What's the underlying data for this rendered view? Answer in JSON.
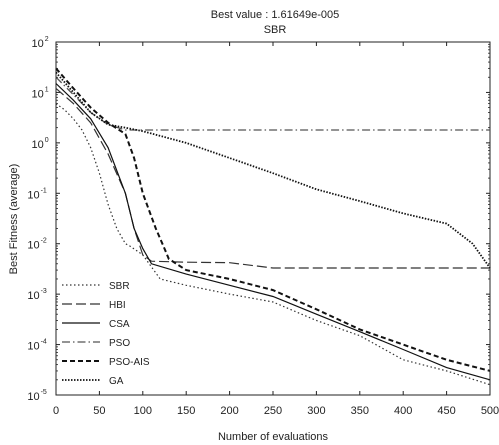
{
  "chart_data": {
    "type": "line",
    "title": "Best value : 1.61649e-005",
    "subtitle": "SBR",
    "xlabel": "Number of evaluations",
    "ylabel": "Best Fitness (average)",
    "xlim": [
      0,
      500
    ],
    "ylim": [
      1e-05,
      100
    ],
    "yscale": "log",
    "grid": false,
    "legend_position": "bottom-left",
    "x_ticks": [
      "0",
      "50",
      "100",
      "150",
      "200",
      "250",
      "300",
      "350",
      "400",
      "450",
      "500"
    ],
    "y_ticks": [
      {
        "base": "10",
        "exp": "2"
      },
      {
        "base": "10",
        "exp": "1"
      },
      {
        "base": "10",
        "exp": "0"
      },
      {
        "base": "10",
        "exp": "-1"
      },
      {
        "base": "10",
        "exp": "-2"
      },
      {
        "base": "10",
        "exp": "-3"
      },
      {
        "base": "10",
        "exp": "-4"
      },
      {
        "base": "10",
        "exp": "-5"
      }
    ],
    "series": [
      {
        "name": "SBR",
        "style": "dotted",
        "color": "#333333",
        "points": [
          [
            0,
            6
          ],
          [
            10,
            4.5
          ],
          [
            20,
            3
          ],
          [
            30,
            1.8
          ],
          [
            40,
            0.8
          ],
          [
            50,
            0.25
          ],
          [
            60,
            0.06
          ],
          [
            70,
            0.02
          ],
          [
            80,
            0.01
          ],
          [
            85,
            0.009
          ],
          [
            100,
            0.006
          ],
          [
            120,
            0.002
          ],
          [
            150,
            0.0015
          ],
          [
            200,
            0.001
          ],
          [
            250,
            0.0007
          ],
          [
            300,
            0.0003
          ],
          [
            350,
            0.00015
          ],
          [
            400,
            5e-05
          ],
          [
            450,
            3e-05
          ],
          [
            500,
            1.6e-05
          ]
        ]
      },
      {
        "name": "HBI",
        "style": "longdash",
        "color": "#333333",
        "points": [
          [
            0,
            12
          ],
          [
            20,
            6
          ],
          [
            40,
            2.5
          ],
          [
            60,
            0.6
          ],
          [
            80,
            0.1
          ],
          [
            90,
            0.02
          ],
          [
            100,
            0.006
          ],
          [
            110,
            0.0045
          ],
          [
            150,
            0.0043
          ],
          [
            200,
            0.0042
          ],
          [
            250,
            0.0033
          ],
          [
            500,
            0.0033
          ]
        ]
      },
      {
        "name": "CSA",
        "style": "solid",
        "color": "#111111",
        "points": [
          [
            0,
            15
          ],
          [
            20,
            7
          ],
          [
            40,
            3
          ],
          [
            60,
            0.8
          ],
          [
            80,
            0.1
          ],
          [
            90,
            0.02
          ],
          [
            100,
            0.008
          ],
          [
            110,
            0.004
          ],
          [
            150,
            0.0025
          ],
          [
            200,
            0.0015
          ],
          [
            250,
            0.0009
          ],
          [
            300,
            0.0004
          ],
          [
            350,
            0.00018
          ],
          [
            400,
            8e-05
          ],
          [
            450,
            3.5e-05
          ],
          [
            500,
            2e-05
          ]
        ]
      },
      {
        "name": "PSO",
        "style": "dashdot",
        "color": "#555555",
        "points": [
          [
            0,
            20
          ],
          [
            20,
            9
          ],
          [
            40,
            4
          ],
          [
            60,
            2.3
          ],
          [
            80,
            1.8
          ],
          [
            100,
            1.8
          ],
          [
            300,
            1.8
          ],
          [
            500,
            1.8
          ]
        ]
      },
      {
        "name": "PSO-AIS",
        "style": "dashed",
        "color": "#111111",
        "points": [
          [
            0,
            30
          ],
          [
            20,
            12
          ],
          [
            40,
            5
          ],
          [
            60,
            2.5
          ],
          [
            80,
            1.5
          ],
          [
            90,
            0.5
          ],
          [
            100,
            0.1
          ],
          [
            115,
            0.02
          ],
          [
            125,
            0.008
          ],
          [
            130,
            0.005
          ],
          [
            150,
            0.003
          ],
          [
            200,
            0.002
          ],
          [
            250,
            0.0012
          ],
          [
            300,
            0.0005
          ],
          [
            350,
            0.0002
          ],
          [
            400,
            0.0001
          ],
          [
            450,
            5e-05
          ],
          [
            500,
            3e-05
          ]
        ]
      },
      {
        "name": "GA",
        "style": "densedot",
        "color": "#111111",
        "points": [
          [
            0,
            25
          ],
          [
            20,
            10
          ],
          [
            40,
            4
          ],
          [
            60,
            2.3
          ],
          [
            80,
            2.0
          ],
          [
            100,
            1.7
          ],
          [
            150,
            1.0
          ],
          [
            200,
            0.5
          ],
          [
            250,
            0.25
          ],
          [
            300,
            0.12
          ],
          [
            350,
            0.07
          ],
          [
            400,
            0.04
          ],
          [
            450,
            0.025
          ],
          [
            480,
            0.01
          ],
          [
            500,
            0.0033
          ]
        ]
      }
    ]
  }
}
